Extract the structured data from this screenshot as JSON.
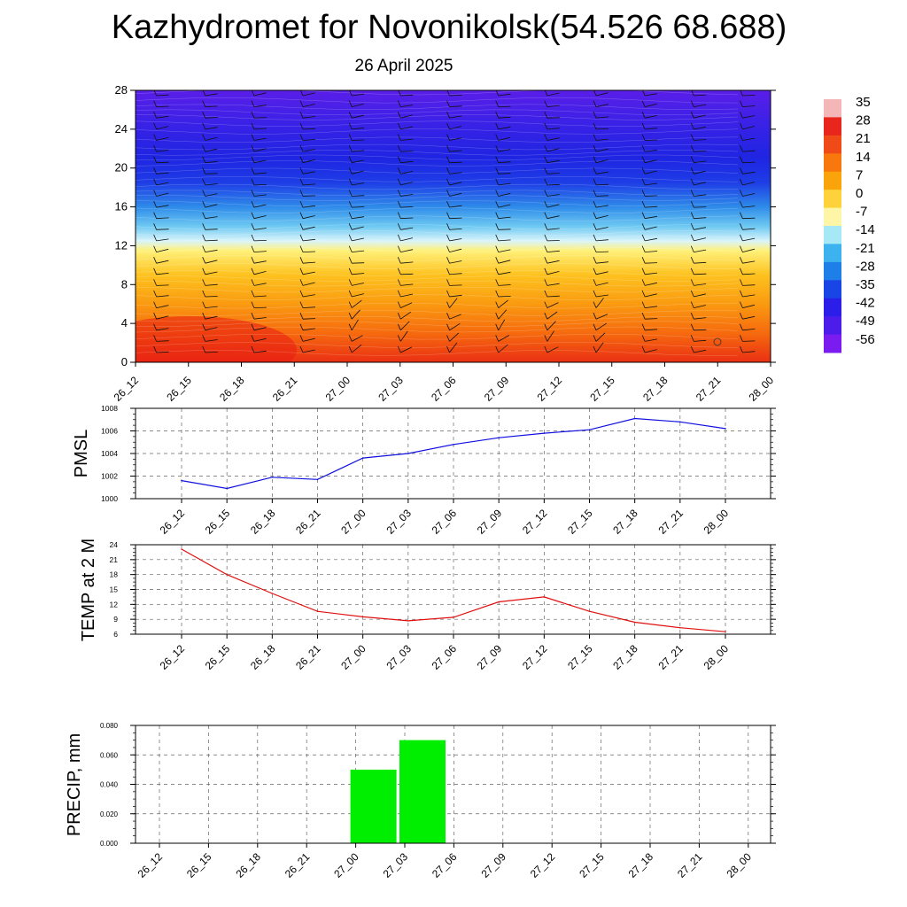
{
  "title": "Kazhydromet for Novonikolsk(54.526 68.688)",
  "subtitle": "26 April 2025",
  "chart_data": [
    {
      "type": "heatmap",
      "description_of_axes": "time vs height",
      "x_ticks": [
        "26_12",
        "26_15",
        "26_18",
        "26_21",
        "27_00",
        "27_03",
        "27_06",
        "27_09",
        "27_12",
        "27_15",
        "27_18",
        "27_21",
        "28_00"
      ],
      "y_ticks": [
        0,
        4,
        8,
        12,
        16,
        20,
        24,
        28
      ],
      "ylim": [
        0,
        28
      ],
      "colorbar_ticks": [
        35,
        28,
        21,
        14,
        7,
        0,
        -7,
        -14,
        -21,
        -28,
        -35,
        -42,
        -49,
        -56
      ],
      "colorbar_colors": [
        "#f4b6b6",
        "#e8261e",
        "#f04a18",
        "#f8780e",
        "#fba30a",
        "#fdd23a",
        "#fff5a6",
        "#a6e8f5",
        "#3cb2ee",
        "#1f7fe8",
        "#1a45e6",
        "#2a1ee8",
        "#4c1cea",
        "#7a1cf0"
      ],
      "layers": [
        {
          "h": 0,
          "color": "#ea2f14"
        },
        {
          "h": 3,
          "color": "#f66a0e"
        },
        {
          "h": 6,
          "color": "#fa9a10"
        },
        {
          "h": 9,
          "color": "#fdc21f"
        },
        {
          "h": 11.5,
          "color": "#fff17a"
        },
        {
          "h": 12.5,
          "color": "#d9f4fb"
        },
        {
          "h": 14,
          "color": "#6ec9f2"
        },
        {
          "h": 16,
          "color": "#2f8be9"
        },
        {
          "h": 18.5,
          "color": "#1e3de6"
        },
        {
          "h": 21,
          "color": "#1f25e2"
        },
        {
          "h": 24,
          "color": "#3522e6"
        },
        {
          "h": 28,
          "color": "#5a1ee8"
        }
      ]
    },
    {
      "type": "line",
      "ylabel": "PMSL",
      "x": [
        "26_12",
        "26_15",
        "26_18",
        "26_21",
        "27_00",
        "27_03",
        "27_06",
        "27_09",
        "27_12",
        "27_15",
        "27_18",
        "27_21",
        "28_00"
      ],
      "values": [
        1001.6,
        1000.9,
        1001.9,
        1001.7,
        1003.6,
        1004.0,
        1004.8,
        1005.4,
        1005.8,
        1006.1,
        1007.1,
        1006.8,
        1006.2
      ],
      "ylim": [
        1000,
        1008
      ],
      "yticks": [
        1000,
        1002,
        1004,
        1006,
        1008
      ],
      "color": "#1010e0"
    },
    {
      "type": "line",
      "ylabel": "TEMP at 2 M",
      "x": [
        "26_12",
        "26_15",
        "26_18",
        "26_21",
        "27_00",
        "27_03",
        "27_06",
        "27_09",
        "27_12",
        "27_15",
        "27_18",
        "27_21",
        "28_00"
      ],
      "values": [
        23.1,
        18.0,
        14.2,
        10.6,
        9.5,
        8.7,
        9.4,
        12.5,
        13.5,
        10.6,
        8.4,
        7.3,
        6.5
      ],
      "ylim": [
        6,
        24
      ],
      "yticks": [
        6,
        9,
        12,
        15,
        18,
        21,
        24
      ],
      "color": "#e01010"
    },
    {
      "type": "bar",
      "ylabel": "PRECIP, mm",
      "x": [
        "26_12",
        "26_15",
        "26_18",
        "26_21",
        "27_00",
        "27_03",
        "27_06",
        "27_09",
        "27_12",
        "27_15",
        "27_18",
        "27_21",
        "28_00"
      ],
      "values": [
        0,
        0,
        0,
        0,
        0.05,
        0.07,
        0,
        0,
        0,
        0,
        0,
        0,
        0
      ],
      "ylim": [
        0,
        0.08
      ],
      "yticks": [
        "0.000",
        "0.020",
        "0.040",
        "0.060",
        "0.080"
      ],
      "color": "#00ee00"
    }
  ]
}
